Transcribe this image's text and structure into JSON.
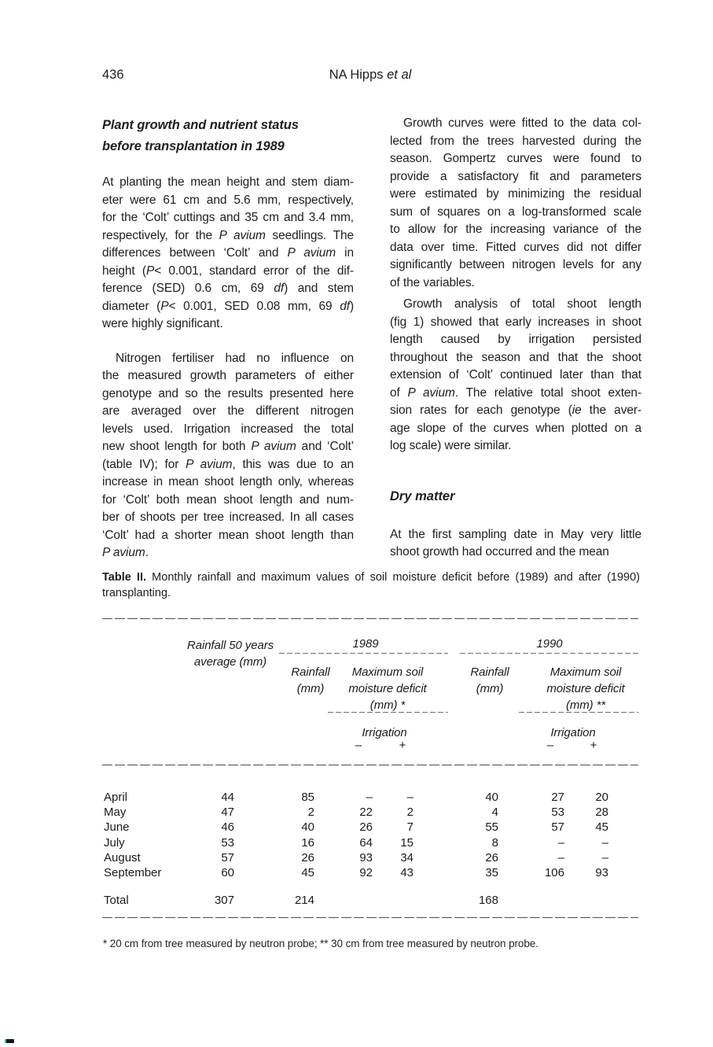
{
  "page": {
    "number": "436",
    "running_head": [
      "NA Hipps ",
      {
        "i": "et al"
      }
    ]
  },
  "left_column": {
    "section_heading_lines": [
      "Plant growth and nutrient status",
      "before transplantation in 1989"
    ],
    "para1_lines": [
      "At planting the mean height and stem diam-",
      "eter were 61 cm and 5.6 mm, respectively,",
      "for the ‘Colt’ cuttings and 35 cm and 3.4 mm,",
      [
        "respectively, for the ",
        {
          "i": "P avium"
        },
        " seedlings. The"
      ],
      [
        "differences between ‘Colt’ and ",
        {
          "i": "P avium"
        },
        " in"
      ],
      [
        "height (",
        {
          "i": "P"
        },
        "< 0.001, standard error of the dif-"
      ],
      [
        "ference (SED) 0.6 cm, 69 ",
        {
          "i": "df"
        },
        ")  and stem"
      ],
      [
        "diameter (",
        {
          "i": "P"
        },
        "< 0.001, SED 0.08 mm, 69 ",
        {
          "i": "df"
        },
        ")"
      ],
      "were highly significant."
    ],
    "para2_lines": [
      "Nitrogen fertiliser had no influence on",
      "the measured growth parameters of either",
      "genotype and so the results presented here",
      "are averaged over the different nitrogen",
      "levels used. Irrigation increased the total",
      [
        "new shoot length for both ",
        {
          "i": "P avium"
        },
        " and ‘Colt’"
      ],
      [
        "(table IV); for ",
        {
          "i": "P avium"
        },
        ", this was due to an"
      ],
      "increase in mean shoot length only, whereas",
      "for ‘Colt’ both mean shoot length and num-",
      "ber of shoots per tree increased. In all cases",
      "‘Colt’ had a shorter mean shoot length than",
      [
        {
          "i": "P avium"
        },
        "."
      ]
    ]
  },
  "right_column": {
    "para1_lines": [
      "Growth curves were fitted to the data col-",
      "lected from the trees harvested during the",
      "season. Gompertz curves were found to",
      "provide a satisfactory fit and parameters",
      "were estimated by minimizing the residual",
      "sum of squares on a log-transformed scale",
      "to allow for the increasing variance of the",
      "data over time. Fitted curves did not differ",
      "significantly between nitrogen levels for any",
      "of the variables."
    ],
    "para2_lines": [
      "Growth analysis of total shoot length",
      "(fig 1) showed that early increases in shoot",
      "length caused by irrigation persisted",
      "throughout the season and that the shoot",
      "extension of ‘Colt’ continued later than that",
      [
        "of ",
        {
          "i": "P avium"
        },
        ". The relative total shoot exten-"
      ],
      [
        "sion rates for each genotype (",
        {
          "i": "ie"
        },
        " the aver-"
      ],
      "age slope of the curves when plotted on a",
      "log scale) were similar."
    ],
    "section_heading": "Dry matter",
    "para3_lines": [
      "At the first sampling date in May very little",
      "shoot growth had occurred and the mean"
    ]
  },
  "table": {
    "caption_lines": [
      [
        {
          "b": "Table II."
        },
        " Monthly rainfall and maximum values of soil moisture deficit before (1989) and after (1990)"
      ],
      [
        "transplanting."
      ]
    ],
    "headers": {
      "avg_lines": [
        "Rainfall 50 years",
        "average (mm)"
      ],
      "year_1989": "1989",
      "year_1990": "1990",
      "rainfall_lines": [
        "Rainfall",
        "(mm)"
      ],
      "msmd_1989_lines": [
        "Maximum soil",
        "moisture deficit",
        "(mm) *"
      ],
      "msmd_1990_lines": [
        "Maximum soil",
        "moisture deficit",
        "(mm) **"
      ],
      "irrigation": "Irrigation",
      "minus": "–",
      "plus": "+"
    },
    "rows": [
      {
        "month": "April",
        "values": [
          "44",
          "85",
          "–",
          "–",
          "40",
          "27",
          "20"
        ]
      },
      {
        "month": "May",
        "values": [
          "47",
          "2",
          "22",
          "2",
          "4",
          "53",
          "28"
        ]
      },
      {
        "month": "June",
        "values": [
          "46",
          "40",
          "26",
          "7",
          "55",
          "57",
          "45"
        ]
      },
      {
        "month": "July",
        "values": [
          "53",
          "16",
          "64",
          "15",
          "8",
          "–",
          "–"
        ]
      },
      {
        "month": "August",
        "values": [
          "57",
          "26",
          "93",
          "34",
          "26",
          "–",
          "–"
        ]
      },
      {
        "month": "September",
        "values": [
          "60",
          "45",
          "92",
          "43",
          "35",
          "106",
          "93"
        ]
      }
    ],
    "total_row": {
      "month": "Total",
      "values": [
        "307",
        "214",
        "",
        "",
        "168",
        "",
        ""
      ]
    },
    "footnote": "* 20 cm from tree measured by neutron probe; ** 30 cm from tree measured by neutron probe."
  }
}
